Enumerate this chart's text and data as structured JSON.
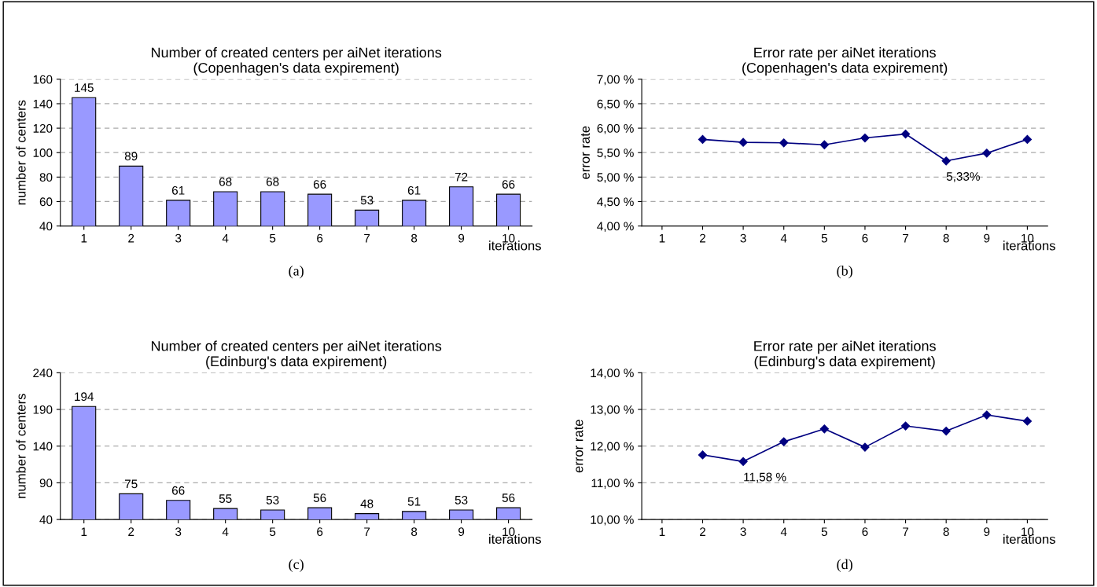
{
  "chart_data": [
    {
      "type": "bar",
      "title": "Number of created centers per aiNet iterations\n(Copenhagen's data expirement)",
      "xlabel": "iterations",
      "ylabel": "number of centers",
      "categories": [
        "1",
        "2",
        "3",
        "4",
        "5",
        "6",
        "7",
        "8",
        "9",
        "10"
      ],
      "values": [
        145,
        89,
        61,
        68,
        68,
        66,
        53,
        61,
        72,
        66
      ],
      "color": "#9999ff",
      "data_labels": true,
      "ylim": [
        40,
        160
      ],
      "yticks": [
        40,
        60,
        80,
        100,
        120,
        140,
        160
      ],
      "grid": "y",
      "annotations": [
        "(a)"
      ]
    },
    {
      "type": "line",
      "title": "Error rate per aiNet iterations\n(Copenhagen's data expirement)",
      "xlabel": "iterations",
      "ylabel": "error rate",
      "categories": [
        "1",
        "2",
        "3",
        "4",
        "5",
        "6",
        "7",
        "8",
        "9",
        "10"
      ],
      "values": [
        null,
        5.77,
        5.71,
        5.7,
        5.66,
        5.8,
        5.88,
        5.33,
        5.49,
        5.77
      ],
      "color": "#000080",
      "marker": "diamond",
      "ylim": [
        4.0,
        7.0
      ],
      "yticks": [
        {
          "value": 4.0,
          "label": "4,00 %"
        },
        {
          "value": 4.5,
          "label": "4,50 %"
        },
        {
          "value": 5.0,
          "label": "5,00 %"
        },
        {
          "value": 5.5,
          "label": "5,50 %"
        },
        {
          "value": 6.0,
          "label": "6,00 %"
        },
        {
          "value": 6.5,
          "label": "6,50 %"
        },
        {
          "value": 7.0,
          "label": "7,00 %"
        }
      ],
      "grid": "y",
      "annotations": [
        {
          "text": "5,33%",
          "x": "8",
          "y": 5.33
        },
        "(b)"
      ]
    },
    {
      "type": "bar",
      "title": "Number of created centers per aiNet iterations\n(Edinburg's data expirement)",
      "xlabel": "iterations",
      "ylabel": "number of centers",
      "categories": [
        "1",
        "2",
        "3",
        "4",
        "5",
        "6",
        "7",
        "8",
        "9",
        "10"
      ],
      "values": [
        194,
        75,
        66,
        55,
        53,
        56,
        48,
        51,
        53,
        56
      ],
      "color": "#9999ff",
      "data_labels": true,
      "ylim": [
        40,
        240
      ],
      "yticks": [
        40,
        90,
        140,
        190,
        240
      ],
      "grid": "y",
      "annotations": [
        "(c)"
      ]
    },
    {
      "type": "line",
      "title": "Error rate per aiNet iterations\n(Edinburg's data expirement)",
      "xlabel": "iterations",
      "ylabel": "error rate",
      "categories": [
        "1",
        "2",
        "3",
        "4",
        "5",
        "6",
        "7",
        "8",
        "9",
        "10"
      ],
      "values": [
        null,
        11.76,
        11.58,
        12.12,
        12.47,
        11.97,
        12.55,
        12.41,
        12.85,
        12.68
      ],
      "color": "#000080",
      "marker": "diamond",
      "ylim": [
        10.0,
        14.0
      ],
      "yticks": [
        {
          "value": 10.0,
          "label": "10,00 %"
        },
        {
          "value": 11.0,
          "label": "11,00 %"
        },
        {
          "value": 12.0,
          "label": "12,00 %"
        },
        {
          "value": 13.0,
          "label": "13,00 %"
        },
        {
          "value": 14.0,
          "label": "14,00 %"
        }
      ],
      "grid": "y",
      "annotations": [
        {
          "text": "11,58 %",
          "x": "3",
          "y": 11.58
        },
        "(d)"
      ]
    }
  ]
}
